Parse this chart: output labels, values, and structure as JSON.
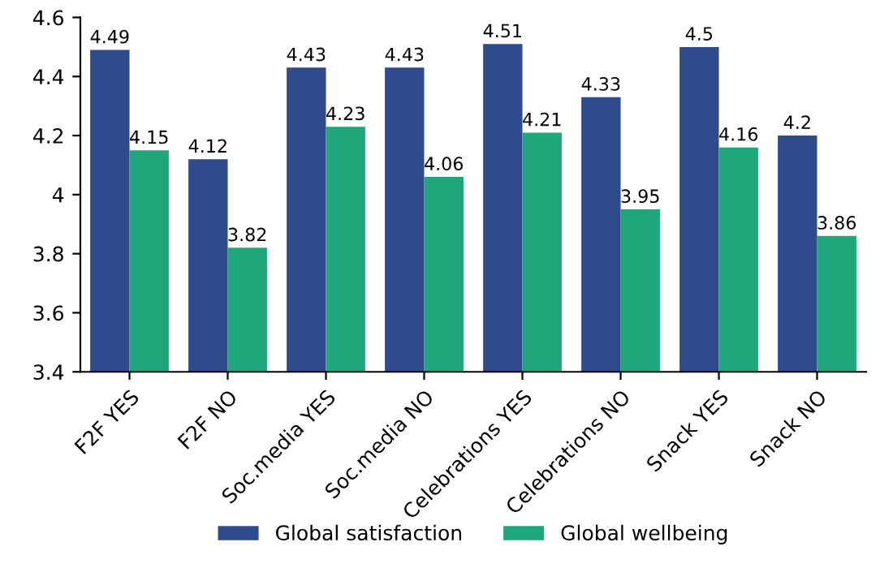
{
  "chart_data": {
    "type": "bar",
    "categories": [
      "F2F YES",
      "F2F NO",
      "Soc.media YES",
      "Soc.media NO",
      "Celebrations YES",
      "Celebrations NO",
      "Snack YES",
      "Snack NO"
    ],
    "series": [
      {
        "name": "Global satisfaction",
        "color": "#2f4b8c",
        "values": [
          4.49,
          4.12,
          4.43,
          4.43,
          4.51,
          4.33,
          4.5,
          4.2
        ]
      },
      {
        "name": "Global wellbeing",
        "color": "#1fa67a",
        "values": [
          4.15,
          3.82,
          4.23,
          4.06,
          4.21,
          3.95,
          4.16,
          3.86
        ]
      }
    ],
    "ylim": [
      3.4,
      4.6
    ],
    "yticks": [
      3.4,
      3.6,
      3.8,
      4,
      4.2,
      4.4,
      4.6
    ],
    "grid": false,
    "legend": "bottom",
    "data_labels": true
  }
}
